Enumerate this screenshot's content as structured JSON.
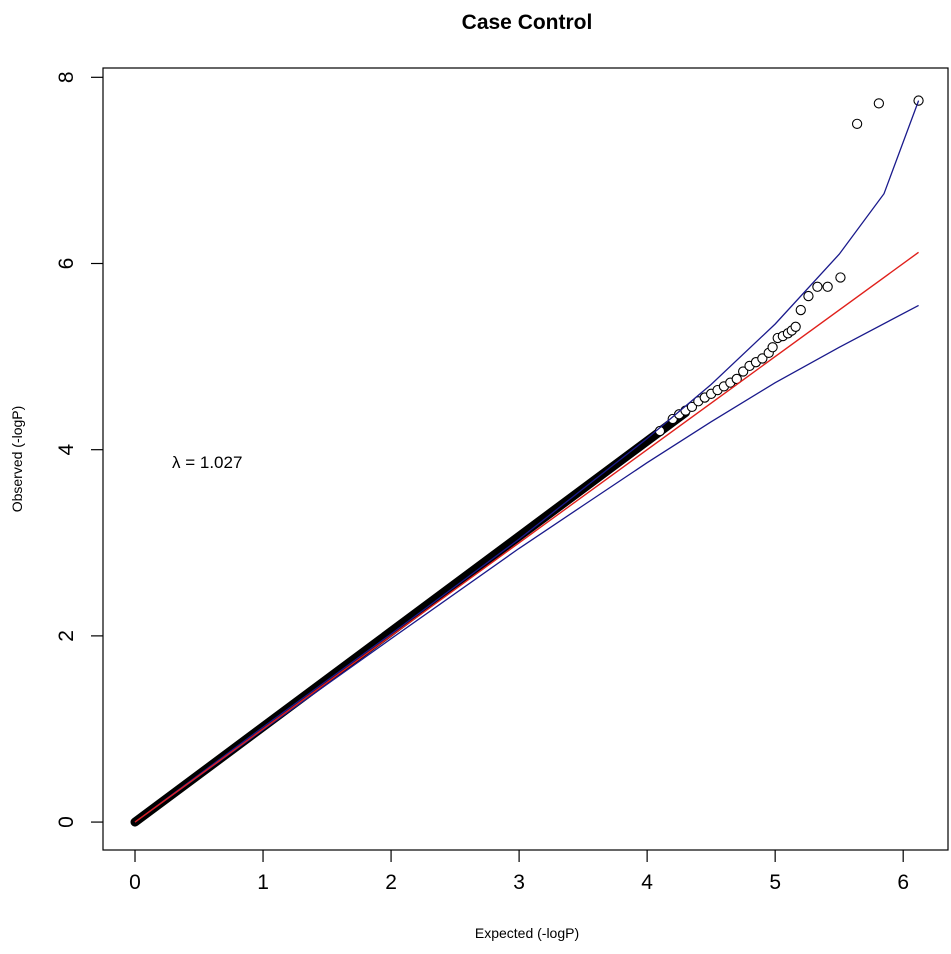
{
  "chart_data": {
    "type": "scatter",
    "title": "Case Control",
    "xlabel": "Expected (-logP)",
    "ylabel": "Observed (-logP)",
    "xlim": [
      -0.25,
      6.35
    ],
    "ylim": [
      -0.3,
      8.1
    ],
    "x_ticks": [
      "0",
      "1",
      "2",
      "3",
      "4",
      "5",
      "6"
    ],
    "y_ticks": [
      "0",
      "2",
      "4",
      "6",
      "8"
    ],
    "annotation": "λ = 1.027",
    "grid": false,
    "colors": {
      "points": "#000000",
      "reference_line": "#e0201b",
      "confidence_band": "#1a1a8c"
    },
    "reference_line": {
      "x": [
        0,
        6.12
      ],
      "y": [
        0,
        6.12
      ]
    },
    "confidence_band": {
      "upper": [
        [
          0,
          0.0
        ],
        [
          1,
          1.02
        ],
        [
          2,
          2.02
        ],
        [
          3,
          3.04
        ],
        [
          3.5,
          3.58
        ],
        [
          4,
          4.12
        ],
        [
          4.5,
          4.7
        ],
        [
          5,
          5.35
        ],
        [
          5.5,
          6.1
        ],
        [
          5.85,
          6.75
        ],
        [
          6.12,
          7.75
        ]
      ],
      "lower": [
        [
          0,
          0.0
        ],
        [
          1,
          0.99
        ],
        [
          2,
          1.97
        ],
        [
          3,
          2.94
        ],
        [
          3.5,
          3.4
        ],
        [
          4,
          3.86
        ],
        [
          4.5,
          4.3
        ],
        [
          5,
          4.72
        ],
        [
          5.5,
          5.1
        ],
        [
          6.12,
          5.55
        ]
      ]
    },
    "dense_range": {
      "x": [
        0,
        4.3
      ],
      "y": [
        0,
        4.4
      ]
    },
    "tail_points": [
      [
        4.1,
        4.2
      ],
      [
        4.2,
        4.33
      ],
      [
        4.25,
        4.38
      ],
      [
        4.3,
        4.42
      ],
      [
        4.35,
        4.46
      ],
      [
        4.4,
        4.52
      ],
      [
        4.45,
        4.56
      ],
      [
        4.5,
        4.6
      ],
      [
        4.55,
        4.64
      ],
      [
        4.6,
        4.68
      ],
      [
        4.65,
        4.72
      ],
      [
        4.7,
        4.76
      ],
      [
        4.75,
        4.84
      ],
      [
        4.8,
        4.9
      ],
      [
        4.85,
        4.94
      ],
      [
        4.9,
        4.98
      ],
      [
        4.95,
        5.04
      ],
      [
        4.98,
        5.1
      ],
      [
        5.02,
        5.2
      ],
      [
        5.06,
        5.22
      ],
      [
        5.1,
        5.25
      ],
      [
        5.13,
        5.28
      ],
      [
        5.16,
        5.32
      ],
      [
        5.2,
        5.5
      ],
      [
        5.26,
        5.65
      ],
      [
        5.33,
        5.75
      ],
      [
        5.41,
        5.75
      ],
      [
        5.51,
        5.85
      ],
      [
        5.64,
        7.5
      ],
      [
        5.81,
        7.72
      ],
      [
        6.12,
        7.75
      ]
    ]
  }
}
